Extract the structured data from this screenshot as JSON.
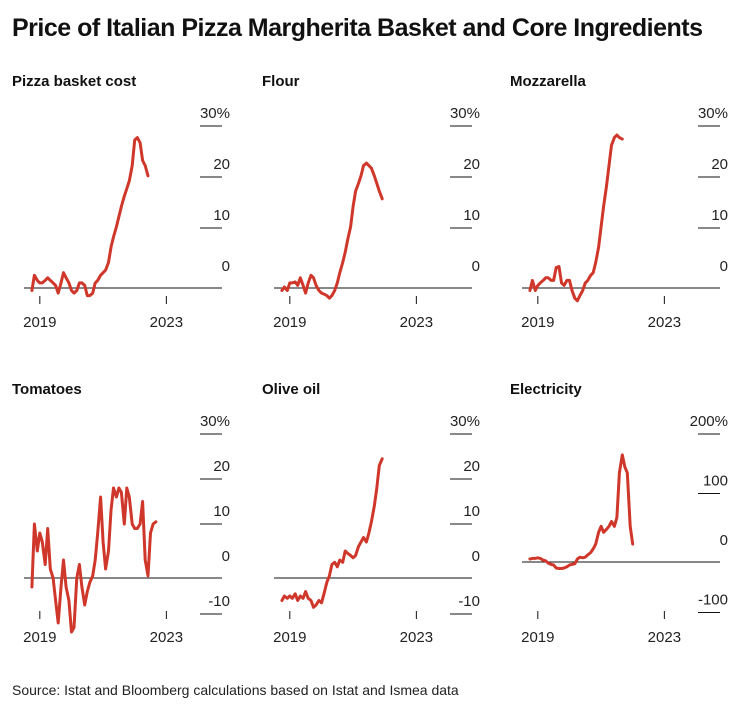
{
  "title": "Price of Italian Pizza Margherita Basket and Core Ingredients",
  "source": "Source: Istat and Bloomberg calculations based on Istat and Ismea data",
  "colors": {
    "line": "#D0372B",
    "axis": "#111111",
    "text": "#222222"
  },
  "chart_data": [
    {
      "type": "line",
      "title": "Pizza basket cost",
      "ylim": [
        -3,
        30
      ],
      "yticks": [
        {
          "v": 30,
          "label": "30%"
        },
        {
          "v": 20,
          "label": "20"
        },
        {
          "v": 10,
          "label": "10"
        },
        {
          "v": 0,
          "label": "0"
        }
      ],
      "xticks": [
        {
          "v": 2019,
          "label": "2019"
        },
        {
          "v": 2023,
          "label": "2023"
        }
      ],
      "xlim": [
        2018.5,
        2024.0
      ],
      "x": [
        2018.75,
        2018.83,
        2018.92,
        2019.0,
        2019.08,
        2019.17,
        2019.25,
        2019.33,
        2019.42,
        2019.5,
        2019.58,
        2019.67,
        2019.75,
        2019.83,
        2019.92,
        2020.0,
        2020.08,
        2020.17,
        2020.25,
        2020.33,
        2020.42,
        2020.5,
        2020.58,
        2020.67,
        2020.75,
        2020.83,
        2020.92,
        2021.0,
        2021.08,
        2021.17,
        2021.25,
        2021.33,
        2021.42,
        2021.5,
        2021.58,
        2021.67,
        2021.75,
        2021.83,
        2021.92,
        2022.0,
        2022.08,
        2022.17,
        2022.25,
        2022.33,
        2022.42,
        2022.5,
        2022.58,
        2022.67,
        2022.75,
        2022.83,
        2022.92,
        2023.0,
        2023.08,
        2023.17,
        2023.25
      ],
      "y": [
        -0.5,
        2.5,
        1.5,
        1.0,
        1.0,
        1.5,
        2.0,
        1.5,
        1.0,
        0.5,
        -1.0,
        1.0,
        3.0,
        2.0,
        1.0,
        -0.5,
        -1.0,
        -0.5,
        1.0,
        1.0,
        0.5,
        -1.5,
        -1.5,
        -1.0,
        1.0,
        1.5,
        2.5,
        3.0,
        3.5,
        5.0,
        8.0,
        10.0,
        12.0,
        14.0,
        16.0,
        18.0,
        19.5,
        21.0,
        24.0,
        29.0,
        29.5,
        28.5,
        25.0,
        24.0,
        22.0,
        null,
        null,
        null,
        null,
        null,
        null,
        null,
        null,
        null,
        null
      ]
    },
    {
      "type": "line",
      "title": "Flour",
      "ylim": [
        -3,
        30
      ],
      "yticks": [
        {
          "v": 30,
          "label": "30%"
        },
        {
          "v": 20,
          "label": "20"
        },
        {
          "v": 10,
          "label": "10"
        },
        {
          "v": 0,
          "label": "0"
        }
      ],
      "xticks": [
        {
          "v": 2019,
          "label": "2019"
        },
        {
          "v": 2023,
          "label": "2023"
        }
      ],
      "xlim": [
        2018.5,
        2024.0
      ],
      "x": [
        2018.75,
        2018.83,
        2018.92,
        2019.0,
        2019.08,
        2019.17,
        2019.25,
        2019.33,
        2019.42,
        2019.5,
        2019.58,
        2019.67,
        2019.75,
        2019.83,
        2019.92,
        2020.0,
        2020.08,
        2020.17,
        2020.25,
        2020.33,
        2020.42,
        2020.5,
        2020.58,
        2020.67,
        2020.75,
        2020.83,
        2020.92,
        2021.0,
        2021.08,
        2021.17,
        2021.25,
        2021.33,
        2021.42,
        2021.5,
        2021.58,
        2021.67,
        2021.75,
        2021.83,
        2021.92,
        2022.0,
        2022.08,
        2022.17,
        2022.25,
        2022.33,
        2022.42
      ],
      "y": [
        -0.5,
        0.2,
        -0.5,
        1.0,
        1.0,
        1.2,
        0.5,
        2.0,
        0.5,
        -1.0,
        1.0,
        2.5,
        2.0,
        0.5,
        -0.5,
        -1.0,
        -1.2,
        -1.5,
        -2.0,
        -1.5,
        -0.5,
        1.0,
        3.0,
        5.0,
        7.0,
        9.5,
        12.0,
        16.0,
        19.0,
        20.5,
        22.0,
        24.0,
        24.5,
        24.0,
        23.5,
        22.0,
        20.5,
        19.0,
        17.5,
        null,
        null,
        null,
        null,
        null,
        null
      ]
    },
    {
      "type": "line",
      "title": "Mozzarella",
      "ylim": [
        -3,
        30
      ],
      "yticks": [
        {
          "v": 30,
          "label": "30%"
        },
        {
          "v": 20,
          "label": "20"
        },
        {
          "v": 10,
          "label": "10"
        },
        {
          "v": 0,
          "label": "0"
        }
      ],
      "xticks": [
        {
          "v": 2019,
          "label": "2019"
        },
        {
          "v": 2023,
          "label": "2023"
        }
      ],
      "xlim": [
        2018.5,
        2024.0
      ],
      "x": [
        2018.75,
        2018.83,
        2018.92,
        2019.0,
        2019.08,
        2019.17,
        2019.25,
        2019.33,
        2019.42,
        2019.5,
        2019.58,
        2019.67,
        2019.75,
        2019.83,
        2019.92,
        2020.0,
        2020.08,
        2020.17,
        2020.25,
        2020.33,
        2020.42,
        2020.5,
        2020.58,
        2020.67,
        2020.75,
        2020.83,
        2020.92,
        2021.0,
        2021.08,
        2021.17,
        2021.25,
        2021.33,
        2021.42,
        2021.5,
        2021.58,
        2021.67,
        2021.75,
        2021.83,
        2021.92,
        2022.0,
        2022.08,
        2022.17,
        2022.25,
        2022.33
      ],
      "y": [
        -0.5,
        1.5,
        -0.5,
        0.5,
        1.0,
        1.5,
        2.0,
        2.0,
        1.5,
        1.5,
        4.0,
        4.2,
        1.0,
        0.5,
        1.5,
        1.5,
        -0.5,
        -2.0,
        -2.5,
        -1.5,
        -0.5,
        1.0,
        1.5,
        2.5,
        3.0,
        5.0,
        8.0,
        12.0,
        16.0,
        20.0,
        24.0,
        28.0,
        29.5,
        30.0,
        29.5,
        29.2,
        null,
        null,
        null,
        null,
        null,
        null,
        null,
        null
      ]
    },
    {
      "type": "line",
      "title": "Tomatoes",
      "ylim": [
        -15,
        30
      ],
      "yticks": [
        {
          "v": 30,
          "label": "30%"
        },
        {
          "v": 20,
          "label": "20"
        },
        {
          "v": 10,
          "label": "10"
        },
        {
          "v": 0,
          "label": "0"
        },
        {
          "v": -10,
          "label": "-10"
        }
      ],
      "xticks": [
        {
          "v": 2019,
          "label": "2019"
        },
        {
          "v": 2023,
          "label": "2023"
        }
      ],
      "xlim": [
        2018.5,
        2024.0
      ],
      "x": [
        2018.75,
        2018.83,
        2018.92,
        2019.0,
        2019.08,
        2019.17,
        2019.25,
        2019.33,
        2019.42,
        2019.5,
        2019.58,
        2019.67,
        2019.75,
        2019.83,
        2019.92,
        2020.0,
        2020.08,
        2020.17,
        2020.25,
        2020.33,
        2020.42,
        2020.5,
        2020.58,
        2020.67,
        2020.75,
        2020.83,
        2020.92,
        2021.0,
        2021.08,
        2021.17,
        2021.25,
        2021.33,
        2021.42,
        2021.5,
        2021.58,
        2021.67,
        2021.75,
        2021.83,
        2021.92,
        2022.0,
        2022.08,
        2022.17,
        2022.25,
        2022.33,
        2022.42,
        2022.5,
        2022.58,
        2022.67,
        2022.75,
        2022.83,
        2022.92,
        2023.0,
        2023.08,
        2023.17,
        2023.25,
        2023.33
      ],
      "y": [
        -2.0,
        12.0,
        6.0,
        10.0,
        8.0,
        3.0,
        11.0,
        2.0,
        0.0,
        -5.0,
        -10.0,
        -2.0,
        4.0,
        -2.0,
        -5.0,
        -12.0,
        -11.0,
        0.0,
        3.0,
        -2.0,
        -6.0,
        -3.0,
        -1.0,
        0.5,
        4.0,
        10.0,
        18.0,
        8.0,
        2.0,
        6.0,
        15.0,
        20.0,
        18.0,
        20.0,
        19.0,
        12.0,
        20.0,
        18.0,
        12.0,
        11.0,
        11.0,
        12.0,
        17.0,
        4.0,
        0.5,
        10.0,
        12.0,
        12.5,
        null,
        null,
        null,
        null,
        null,
        null,
        null,
        null
      ]
    },
    {
      "type": "line",
      "title": "Olive oil",
      "ylim": [
        -15,
        30
      ],
      "yticks": [
        {
          "v": 30,
          "label": "30%"
        },
        {
          "v": 20,
          "label": "20"
        },
        {
          "v": 10,
          "label": "10"
        },
        {
          "v": 0,
          "label": "0"
        },
        {
          "v": -10,
          "label": "-10"
        }
      ],
      "xticks": [
        {
          "v": 2019,
          "label": "2019"
        },
        {
          "v": 2023,
          "label": "2023"
        }
      ],
      "xlim": [
        2018.5,
        2024.0
      ],
      "x": [
        2018.75,
        2018.83,
        2018.92,
        2019.0,
        2019.08,
        2019.17,
        2019.25,
        2019.33,
        2019.42,
        2019.5,
        2019.58,
        2019.67,
        2019.75,
        2019.83,
        2019.92,
        2020.0,
        2020.08,
        2020.17,
        2020.25,
        2020.33,
        2020.42,
        2020.5,
        2020.58,
        2020.67,
        2020.75,
        2020.83,
        2020.92,
        2021.0,
        2021.08,
        2021.17,
        2021.25,
        2021.33,
        2021.42,
        2021.5,
        2021.58,
        2021.67,
        2021.75,
        2021.83,
        2021.92,
        2022.0,
        2022.08,
        2022.17,
        2022.25,
        2022.33
      ],
      "y": [
        -5.0,
        -4.0,
        -4.5,
        -4.0,
        -4.5,
        -3.5,
        -5.0,
        -4.0,
        -4.5,
        -3.0,
        -4.5,
        -5.0,
        -6.5,
        -6.0,
        -5.0,
        -5.5,
        -3.5,
        -1.0,
        0.5,
        3.0,
        3.5,
        2.5,
        4.0,
        3.5,
        6.0,
        5.5,
        5.0,
        4.5,
        5.0,
        7.0,
        8.0,
        9.0,
        8.0,
        10.0,
        12.5,
        16.0,
        20.0,
        25.0,
        26.5,
        null,
        null,
        null,
        null,
        null
      ]
    },
    {
      "type": "line",
      "title": "Electricity",
      "ylim": [
        -110,
        200
      ],
      "yticks": [
        {
          "v": 200,
          "label": "200%"
        },
        {
          "v": 100,
          "label": "100"
        },
        {
          "v": 0,
          "label": "0"
        },
        {
          "v": -100,
          "label": "-100"
        }
      ],
      "xticks": [
        {
          "v": 2019,
          "label": "2019"
        },
        {
          "v": 2023,
          "label": "2023"
        }
      ],
      "xlim": [
        2018.5,
        2024.0
      ],
      "x": [
        2018.75,
        2018.83,
        2018.92,
        2019.0,
        2019.08,
        2019.17,
        2019.25,
        2019.33,
        2019.42,
        2019.5,
        2019.58,
        2019.67,
        2019.75,
        2019.83,
        2019.92,
        2020.0,
        2020.08,
        2020.17,
        2020.25,
        2020.33,
        2020.42,
        2020.5,
        2020.58,
        2020.67,
        2020.75,
        2020.83,
        2020.92,
        2021.0,
        2021.08,
        2021.17,
        2021.25,
        2021.33,
        2021.42,
        2021.5,
        2021.58,
        2021.67,
        2021.75,
        2021.83,
        2021.92,
        2022.0,
        2022.08,
        2022.17,
        2022.25,
        2022.33
      ],
      "y": [
        5,
        6,
        6,
        7,
        6,
        3,
        2,
        -2,
        -4,
        -5,
        -10,
        -11,
        -11,
        -10,
        -8,
        -5,
        -4,
        -3,
        5,
        8,
        7,
        8,
        12,
        16,
        22,
        30,
        50,
        60,
        50,
        55,
        60,
        68,
        60,
        75,
        150,
        180,
        160,
        150,
        60,
        30,
        null,
        null,
        null,
        null
      ]
    }
  ]
}
